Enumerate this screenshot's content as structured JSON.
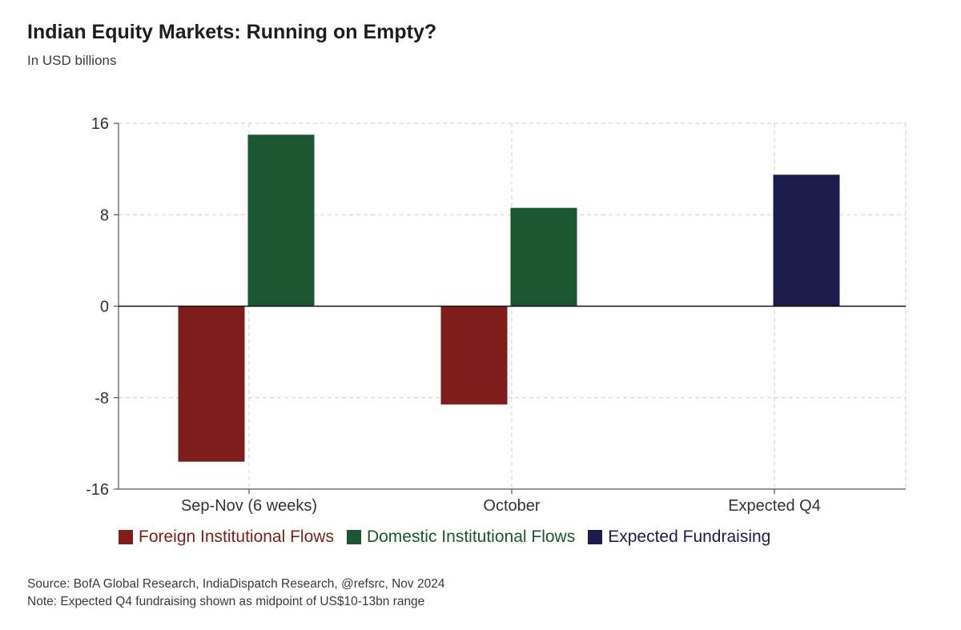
{
  "chart_data": {
    "type": "bar",
    "title": "Indian Equity Markets: Running on Empty?",
    "subtitle": "In USD billions",
    "categories": [
      "Sep-Nov (6 weeks)",
      "October",
      "Expected Q4"
    ],
    "series": [
      {
        "name": "Foreign Institutional Flows",
        "color": "#7f1d1d",
        "values": [
          -13.6,
          -8.6,
          null
        ]
      },
      {
        "name": "Domestic Institutional Flows",
        "color": "#1a5632",
        "values": [
          15.0,
          8.6,
          null
        ]
      },
      {
        "name": "Expected Fundraising",
        "color": "#1c1c4a",
        "values": [
          null,
          null,
          11.5
        ]
      }
    ],
    "yticks": [
      16,
      8,
      0,
      -8,
      -16
    ],
    "ylim": [
      -16,
      16
    ],
    "grid": true,
    "legend_position": "bottom",
    "source": "Source: BofA Global Research, IndiaDispatch Research, @refsrc, Nov 2024",
    "note": "Note: Expected Q4 fundraising shown as midpoint of US$10-13bn range"
  }
}
